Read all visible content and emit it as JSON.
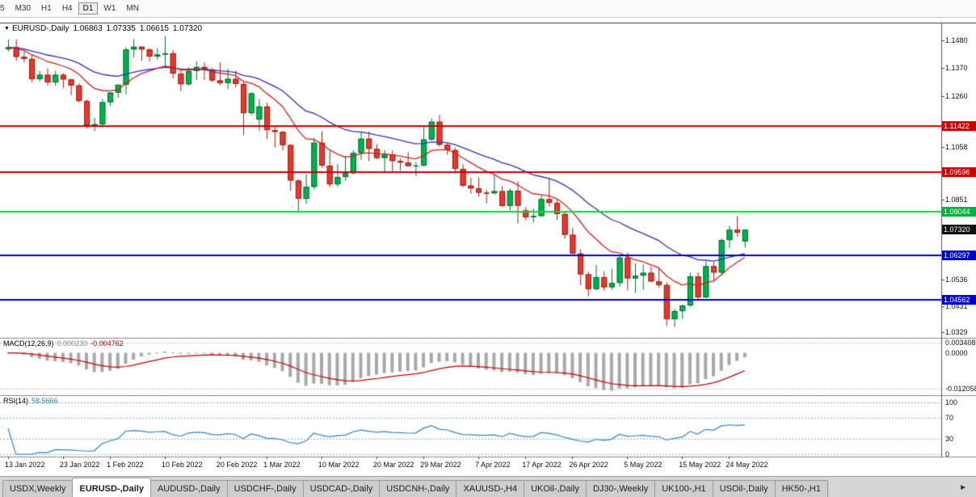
{
  "toolbar": {
    "buttons": [
      {
        "label": "5",
        "active": false
      },
      {
        "label": "M30",
        "active": false
      },
      {
        "label": "H1",
        "active": false
      },
      {
        "label": "H4",
        "active": false
      },
      {
        "label": "D1",
        "active": true
      },
      {
        "label": "W1",
        "active": false
      },
      {
        "label": "MN",
        "active": false
      }
    ]
  },
  "chart": {
    "title": {
      "marker": "▼",
      "symbol": "EURUSD-,Daily",
      "open": "1.06863",
      "high": "1.07335",
      "low": "1.06615",
      "close": "1.07320"
    }
  },
  "price_axis": {
    "labels": [
      {
        "text": "1.1480",
        "value": 1.148
      },
      {
        "text": "1.1370",
        "value": 1.137
      },
      {
        "text": "1.1260",
        "value": 1.126
      },
      {
        "text": "1.1058",
        "value": 1.1058
      },
      {
        "text": "1.0851",
        "value": 1.0851
      },
      {
        "text": "1.0536",
        "value": 1.0536
      },
      {
        "text": "1.0431",
        "value": 1.0431
      },
      {
        "text": "1.0329",
        "value": 1.0329
      }
    ],
    "badges": [
      {
        "text": "1.11422",
        "value": 1.11422,
        "bg": "#cf0000"
      },
      {
        "text": "1.09596",
        "value": 1.09596,
        "bg": "#cf0000"
      },
      {
        "text": "1.08044",
        "value": 1.08044,
        "bg": "#00b33c"
      },
      {
        "text": "1.07320",
        "value": 1.0732,
        "bg": "#111111"
      },
      {
        "text": "1.06297",
        "value": 1.06297,
        "bg": "#0000c8"
      },
      {
        "text": "1.04562",
        "value": 1.04562,
        "bg": "#0000c8"
      }
    ]
  },
  "hlines": [
    {
      "value": 1.11422,
      "color": "#cc0000"
    },
    {
      "value": 1.09596,
      "color": "#cc0000"
    },
    {
      "value": 1.08044,
      "color": "#00dd33"
    },
    {
      "value": 1.06297,
      "color": "#0000cc"
    },
    {
      "value": 1.04562,
      "color": "#0000cc"
    }
  ],
  "indicators": {
    "macd": {
      "label": "MACD(12,26,9)",
      "main_value": "0.000230",
      "signal_value": "-0.004762",
      "axis_labels": [
        {
          "text": "0.003408",
          "value": 0.003408
        },
        {
          "text": "0.0000",
          "value": 0
        },
        {
          "text": "-0.012058",
          "value": -0.012058
        }
      ],
      "histogram_color": "#a8a8a8",
      "signal_color": "#c00000"
    },
    "rsi": {
      "label": "RSI(14)",
      "value": "58.5666",
      "axis_labels": [
        {
          "text": "100",
          "value": 100
        },
        {
          "text": "70",
          "value": 70
        },
        {
          "text": "30",
          "value": 30
        },
        {
          "text": "0",
          "value": 0
        }
      ],
      "levels": [
        100,
        70,
        30,
        0
      ],
      "line_color": "#3585c0"
    }
  },
  "time_axis": {
    "labels": [
      {
        "text": "13 Jan 2022",
        "i": 0
      },
      {
        "text": "23 Jan 2022",
        "i": 7
      },
      {
        "text": "1 Feb 2022",
        "i": 13
      },
      {
        "text": "10 Feb 2022",
        "i": 20
      },
      {
        "text": "20 Feb 2022",
        "i": 27
      },
      {
        "text": "1 Mar 2022",
        "i": 33
      },
      {
        "text": "10 Mar 2022",
        "i": 40
      },
      {
        "text": "20 Mar 2022",
        "i": 47
      },
      {
        "text": "29 Mar 2022",
        "i": 53
      },
      {
        "text": "7 Apr 2022",
        "i": 60
      },
      {
        "text": "17 Apr 2022",
        "i": 66
      },
      {
        "text": "26 Apr 2022",
        "i": 72
      },
      {
        "text": "5 May 2022",
        "i": 79
      },
      {
        "text": "15 May 2022",
        "i": 86
      },
      {
        "text": "24 May 2022",
        "i": 92
      }
    ]
  },
  "tabs": {
    "scroll_icon": "►",
    "items": [
      {
        "label": "USDX,Weekly",
        "active": false
      },
      {
        "label": "EURUSD-,Daily",
        "active": true
      },
      {
        "label": "AUDUSD-,Daily",
        "active": false
      },
      {
        "label": "USDCHF-,Daily",
        "active": false
      },
      {
        "label": "USDCAD-,Daily",
        "active": false
      },
      {
        "label": "USDCNH-,Daily",
        "active": false
      },
      {
        "label": "XAUUSD-,H4",
        "active": false
      },
      {
        "label": "UKOil-,Daily",
        "active": false
      },
      {
        "label": "DJ30-,Weekly",
        "active": false
      },
      {
        "label": "UK100-,H1",
        "active": false
      },
      {
        "label": "USOil-,Daily",
        "active": false
      },
      {
        "label": "HK50-,H1",
        "active": false
      }
    ]
  },
  "chart_data": {
    "type": "candlestick",
    "symbol": "EURUSD-",
    "timeframe": "Daily",
    "y_range": [
      1.0312,
      1.1549
    ],
    "up_color": "#00b34d",
    "down_color": "#e23b2e",
    "ma_fast": {
      "period": 12,
      "color": "#d02020"
    },
    "ma_slow": {
      "period": 26,
      "color": "#3030b8"
    },
    "candles": [
      [
        1.1444,
        1.1482,
        1.1435,
        1.1452
      ],
      [
        1.1452,
        1.1483,
        1.1398,
        1.1414
      ],
      [
        1.1414,
        1.1436,
        1.1392,
        1.1406
      ],
      [
        1.1406,
        1.1422,
        1.1313,
        1.1326
      ],
      [
        1.1326,
        1.1359,
        1.1317,
        1.1343
      ],
      [
        1.1343,
        1.1369,
        1.1301,
        1.1313
      ],
      [
        1.1313,
        1.136,
        1.13,
        1.1343
      ],
      [
        1.1343,
        1.1349,
        1.129,
        1.1325
      ],
      [
        1.1325,
        1.1327,
        1.1263,
        1.1301
      ],
      [
        1.1301,
        1.131,
        1.1234,
        1.124
      ],
      [
        1.124,
        1.1245,
        1.1131,
        1.1144
      ],
      [
        1.1144,
        1.1173,
        1.1121,
        1.1148
      ],
      [
        1.1148,
        1.1248,
        1.1135,
        1.1235
      ],
      [
        1.1235,
        1.1274,
        1.122,
        1.1273
      ],
      [
        1.1273,
        1.1305,
        1.1253,
        1.1304
      ],
      [
        1.1304,
        1.1452,
        1.1266,
        1.1443
      ],
      [
        1.1443,
        1.1484,
        1.1411,
        1.1454
      ],
      [
        1.1454,
        1.1456,
        1.1398,
        1.1443
      ],
      [
        1.1443,
        1.1449,
        1.1396,
        1.1415
      ],
      [
        1.1415,
        1.1448,
        1.1403,
        1.1423
      ],
      [
        1.1423,
        1.1495,
        1.1375,
        1.1428
      ],
      [
        1.1428,
        1.1441,
        1.133,
        1.1348
      ],
      [
        1.1348,
        1.1369,
        1.1278,
        1.1306
      ],
      [
        1.1306,
        1.1373,
        1.13,
        1.1358
      ],
      [
        1.1358,
        1.1396,
        1.1323,
        1.1374
      ],
      [
        1.1374,
        1.1392,
        1.1323,
        1.1362
      ],
      [
        1.1362,
        1.137,
        1.1313,
        1.1321
      ],
      [
        1.1321,
        1.1392,
        1.1302,
        1.131
      ],
      [
        1.131,
        1.1367,
        1.1287,
        1.1327
      ],
      [
        1.1327,
        1.136,
        1.1294,
        1.1307
      ],
      [
        1.1307,
        1.1314,
        1.1106,
        1.1192
      ],
      [
        1.1192,
        1.1274,
        1.1184,
        1.127
      ],
      [
        1.1167,
        1.1247,
        1.1122,
        1.1218
      ],
      [
        1.1218,
        1.1234,
        1.109,
        1.1125
      ],
      [
        1.1125,
        1.114,
        1.1058,
        1.1118
      ],
      [
        1.1118,
        1.1121,
        1.1045,
        1.1066
      ],
      [
        1.1066,
        1.107,
        1.0886,
        1.0926
      ],
      [
        1.0926,
        1.0931,
        1.0806,
        1.0854
      ],
      [
        1.0854,
        1.095,
        1.0834,
        1.0901
      ],
      [
        1.0901,
        1.1095,
        1.0891,
        1.1075
      ],
      [
        1.1075,
        1.1121,
        1.0977,
        1.0985
      ],
      [
        1.0985,
        1.1043,
        1.0901,
        1.0911
      ],
      [
        1.0911,
        1.0992,
        1.0901,
        1.094
      ],
      [
        1.094,
        1.102,
        1.0925,
        1.0955
      ],
      [
        1.0955,
        1.1046,
        1.095,
        1.1035
      ],
      [
        1.1035,
        1.1119,
        1.1008,
        1.1091
      ],
      [
        1.1091,
        1.112,
        1.1003,
        1.1051
      ],
      [
        1.1051,
        1.1069,
        1.101,
        1.1015
      ],
      [
        1.1015,
        1.1046,
        1.0962,
        1.1028
      ],
      [
        1.1028,
        1.1044,
        1.0963,
        1.1003
      ],
      [
        1.1003,
        1.1014,
        1.0965,
        1.0997
      ],
      [
        1.0997,
        1.1038,
        1.0981,
        1.0983
      ],
      [
        1.0983,
        1.0999,
        1.0944,
        1.0985
      ],
      [
        1.0985,
        1.1137,
        1.0981,
        1.1088
      ],
      [
        1.1088,
        1.1171,
        1.1084,
        1.1158
      ],
      [
        1.1158,
        1.1185,
        1.106,
        1.1067
      ],
      [
        1.1067,
        1.1076,
        1.1027,
        1.1046
      ],
      [
        1.1046,
        1.1056,
        1.096,
        1.0972
      ],
      [
        1.0972,
        1.099,
        1.09,
        1.0906
      ],
      [
        1.0906,
        1.0937,
        1.0874,
        1.0895
      ],
      [
        1.0895,
        1.0938,
        1.0863,
        1.0878
      ],
      [
        1.0878,
        1.089,
        1.0836,
        1.0876
      ],
      [
        1.0876,
        1.095,
        1.0871,
        1.0884
      ],
      [
        1.0884,
        1.0904,
        1.0821,
        1.0826
      ],
      [
        1.0826,
        1.0895,
        1.0808,
        1.0886
      ],
      [
        1.0886,
        1.0923,
        1.0757,
        1.0827
      ],
      [
        1.0808,
        1.0821,
        1.0769,
        1.0781
      ],
      [
        1.0781,
        1.0815,
        1.0761,
        1.0786
      ],
      [
        1.0786,
        1.0867,
        1.0783,
        1.0853
      ],
      [
        1.0853,
        1.0936,
        1.0824,
        1.0838
      ],
      [
        1.0838,
        1.0852,
        1.077,
        1.0794
      ],
      [
        1.0794,
        1.0804,
        1.0697,
        1.0712
      ],
      [
        1.0712,
        1.0738,
        1.0635,
        1.0638
      ],
      [
        1.0638,
        1.0655,
        1.0514,
        1.0556
      ],
      [
        1.0556,
        1.0567,
        1.047,
        1.0498
      ],
      [
        1.0498,
        1.0593,
        1.0492,
        1.0545
      ],
      [
        1.0545,
        1.0568,
        1.049,
        1.0505
      ],
      [
        1.0505,
        1.0578,
        1.0495,
        1.0522
      ],
      [
        1.0522,
        1.0632,
        1.0507,
        1.0622
      ],
      [
        1.0622,
        1.0642,
        1.0492,
        1.054
      ],
      [
        1.054,
        1.0599,
        1.0483,
        1.0551
      ],
      [
        1.0551,
        1.0594,
        1.0495,
        1.0562
      ],
      [
        1.0562,
        1.0587,
        1.0524,
        1.0528
      ],
      [
        1.0528,
        1.0579,
        1.0503,
        1.0514
      ],
      [
        1.0514,
        1.0525,
        1.0352,
        1.0379
      ],
      [
        1.0379,
        1.042,
        1.0349,
        1.0411
      ],
      [
        1.0411,
        1.0437,
        1.038,
        1.0433
      ],
      [
        1.0433,
        1.0563,
        1.0428,
        1.0548
      ],
      [
        1.0548,
        1.0564,
        1.0458,
        1.0465
      ],
      [
        1.0465,
        1.0607,
        1.0462,
        1.0588
      ],
      [
        1.0588,
        1.0604,
        1.0532,
        1.0563
      ],
      [
        1.0563,
        1.0697,
        1.0556,
        1.0691
      ],
      [
        1.0691,
        1.0748,
        1.066,
        1.0732
      ],
      [
        1.0732,
        1.0786,
        1.0705,
        1.072
      ],
      [
        1.0686,
        1.0734,
        1.0662,
        1.0732
      ]
    ]
  }
}
